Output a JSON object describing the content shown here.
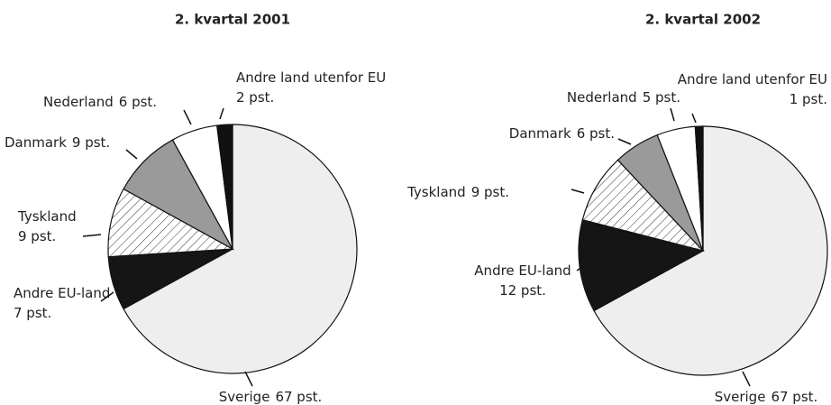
{
  "chart_data": [
    {
      "type": "pie",
      "title": "2. kvartal 2001",
      "categories": [
        "Sverige",
        "Andre EU-land",
        "Tyskland",
        "Danmark",
        "Nederland",
        "Andre land utenfor EU"
      ],
      "values": [
        67,
        7,
        9,
        9,
        6,
        2
      ],
      "value_labels": [
        "67 pst.",
        "7 pst.",
        "9 pst.",
        "9 pst.",
        "6 pst.",
        "2 pst."
      ],
      "colors": [
        "#eeeeee",
        "#151515",
        "#f7f7f7",
        "#9a9a9a",
        "#ffffff",
        "#111111"
      ]
    },
    {
      "type": "pie",
      "title": "2. kvartal 2002",
      "categories": [
        "Sverige",
        "Andre EU-land",
        "Tyskland",
        "Danmark",
        "Nederland",
        "Andre land utenfor EU"
      ],
      "values": [
        67,
        12,
        9,
        6,
        5,
        1
      ],
      "value_labels": [
        "67 pst.",
        "12 pst.",
        "9 pst.",
        "6 pst.",
        "5 pst.",
        "1 pst."
      ],
      "colors": [
        "#eeeeee",
        "#151515",
        "#f7f7f7",
        "#9a9a9a",
        "#ffffff",
        "#111111"
      ]
    }
  ]
}
